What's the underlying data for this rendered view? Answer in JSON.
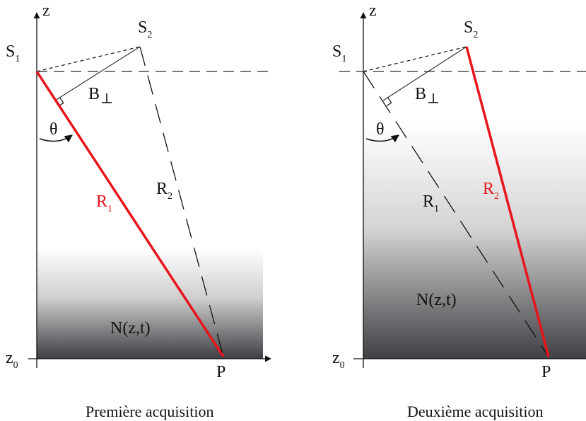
{
  "panels": [
    {
      "axis_z": "z",
      "s1": "S",
      "s1_sub": "1",
      "s2": "S",
      "s2_sub": "2",
      "b_perp": "B",
      "theta": "θ",
      "r1": "R",
      "r1_sub": "1",
      "r2": "R",
      "r2_sub": "2",
      "medium": "N(z,t)",
      "z0": "z",
      "z0_sub": "0",
      "point": "P",
      "caption": "Première acquisition"
    },
    {
      "axis_z": "z",
      "s1": "S",
      "s1_sub": "1",
      "s2": "S",
      "s2_sub": "2",
      "b_perp": "B",
      "theta": "θ",
      "r1": "R",
      "r1_sub": "1",
      "r2": "R",
      "r2_sub": "2",
      "medium": "N(z,t)",
      "z0": "z",
      "z0_sub": "0",
      "point": "P",
      "caption": "Deuxième acquisition"
    }
  ],
  "colors": {
    "highlight": "#e8141b",
    "line": "#111111",
    "reference": "#777777"
  }
}
